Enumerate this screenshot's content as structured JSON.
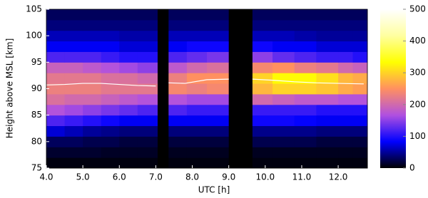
{
  "chart_data": {
    "type": "heatmap",
    "x_label": "UTC [h]",
    "y_label": "Height above MSL  [km]",
    "xlim": [
      4.0,
      12.8
    ],
    "ylim": [
      75,
      105
    ],
    "xticks": [
      {
        "value": 4,
        "label": "4.0"
      },
      {
        "value": 5,
        "label": "5.0"
      },
      {
        "value": 6,
        "label": "6.0"
      },
      {
        "value": 7,
        "label": "7.0"
      },
      {
        "value": 8,
        "label": "8.0"
      },
      {
        "value": 9,
        "label": "9.0"
      },
      {
        "value": 10,
        "label": "10.0"
      },
      {
        "value": 11,
        "label": "11.0"
      },
      {
        "value": 12,
        "label": "12.0"
      }
    ],
    "yticks": [
      75,
      80,
      85,
      90,
      95,
      100,
      105
    ],
    "x_bins": [
      4.0,
      4.5,
      5.0,
      5.5,
      6.0,
      6.5,
      7.05,
      7.35,
      7.85,
      8.4,
      9.0,
      9.65,
      10.2,
      10.8,
      11.4,
      12.0,
      12.4,
      12.8
    ],
    "y_bins": [
      75,
      77,
      79,
      81,
      83,
      85,
      87,
      89,
      91,
      93,
      95,
      97,
      99,
      101,
      103,
      105
    ],
    "z": [
      [
        5,
        5,
        5,
        5,
        5,
        5,
        0,
        5,
        5,
        5,
        0,
        5,
        5,
        5,
        5,
        5,
        5
      ],
      [
        15,
        15,
        15,
        12,
        12,
        12,
        0,
        10,
        10,
        10,
        0,
        10,
        10,
        10,
        10,
        10,
        10
      ],
      [
        30,
        30,
        25,
        25,
        20,
        20,
        0,
        20,
        20,
        20,
        0,
        25,
        25,
        25,
        20,
        20,
        20
      ],
      [
        70,
        60,
        50,
        45,
        40,
        40,
        0,
        40,
        40,
        40,
        0,
        45,
        45,
        45,
        40,
        40,
        40
      ],
      [
        120,
        110,
        100,
        90,
        80,
        80,
        0,
        80,
        80,
        80,
        0,
        90,
        90,
        85,
        80,
        80,
        80
      ],
      [
        170,
        160,
        150,
        140,
        130,
        120,
        0,
        120,
        110,
        110,
        0,
        110,
        110,
        110,
        100,
        100,
        100
      ],
      [
        210,
        200,
        200,
        190,
        180,
        170,
        0,
        170,
        160,
        160,
        0,
        200,
        190,
        180,
        180,
        170,
        170
      ],
      [
        230,
        230,
        230,
        220,
        220,
        220,
        0,
        240,
        230,
        240,
        0,
        280,
        300,
        300,
        290,
        270,
        260
      ],
      [
        220,
        220,
        220,
        210,
        210,
        200,
        0,
        230,
        250,
        250,
        0,
        300,
        330,
        330,
        310,
        280,
        270
      ],
      [
        190,
        190,
        180,
        170,
        160,
        150,
        0,
        180,
        200,
        210,
        0,
        240,
        250,
        230,
        220,
        200,
        190
      ],
      [
        120,
        120,
        120,
        110,
        100,
        100,
        0,
        120,
        130,
        140,
        0,
        150,
        130,
        120,
        110,
        110,
        100
      ],
      [
        80,
        80,
        80,
        80,
        70,
        70,
        0,
        80,
        90,
        90,
        0,
        90,
        80,
        80,
        70,
        70,
        70
      ],
      [
        60,
        60,
        60,
        60,
        55,
        55,
        0,
        60,
        60,
        60,
        0,
        60,
        60,
        55,
        50,
        50,
        50
      ],
      [
        40,
        40,
        40,
        40,
        40,
        40,
        0,
        40,
        40,
        40,
        0,
        40,
        40,
        40,
        40,
        40,
        40
      ],
      [
        30,
        30,
        30,
        30,
        30,
        30,
        0,
        30,
        30,
        30,
        0,
        30,
        30,
        30,
        30,
        30,
        30
      ]
    ],
    "colormap": [
      "#000000",
      "#0000ff",
      "#b050e0",
      "#ff9060",
      "#ffff00",
      "#ffffa0",
      "#ffffff"
    ],
    "clim": [
      0,
      500
    ],
    "colorbar_ticks": [
      0,
      100,
      200,
      300,
      400,
      500
    ],
    "series": [
      {
        "color": "#ffffff",
        "x": [
          4.0,
          4.5,
          5.0,
          5.5,
          6.0,
          6.5,
          7.0,
          7.2,
          7.35,
          7.8,
          8.4,
          9.0,
          9.3,
          9.65,
          10.2,
          10.8,
          11.4,
          12.0,
          12.7
        ],
        "values": [
          90.7,
          90.8,
          91.0,
          91.0,
          90.8,
          90.6,
          90.5,
          null,
          91.1,
          91.0,
          91.7,
          91.8,
          null,
          91.8,
          91.6,
          91.3,
          91.1,
          91.0,
          90.9
        ]
      }
    ]
  }
}
